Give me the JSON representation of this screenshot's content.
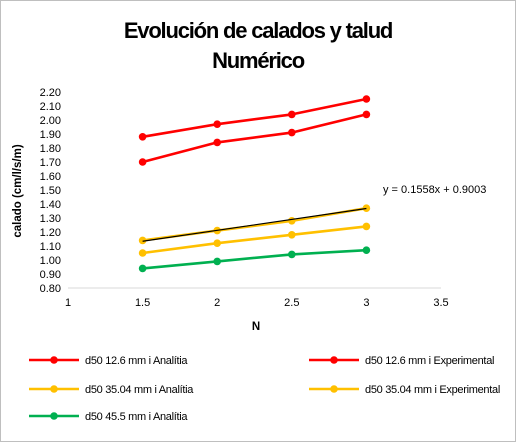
{
  "chart_data": {
    "type": "line",
    "title_lines": [
      "Evolución de calados y talud",
      "Numérico"
    ],
    "xlabel": "N",
    "ylabel": "calado (cm/l/s/m)",
    "xlim": [
      1,
      3.5
    ],
    "ylim": [
      0.8,
      2.2
    ],
    "x_ticks": [
      "1",
      "1.5",
      "2",
      "2.5",
      "3",
      "3.5"
    ],
    "y_ticks": [
      "0.80",
      "0.90",
      "1.00",
      "1.10",
      "1.20",
      "1.30",
      "1.40",
      "1.50",
      "1.60",
      "1.70",
      "1.80",
      "1.90",
      "2.00",
      "2.10",
      "2.20"
    ],
    "x": [
      1.5,
      2,
      2.5,
      3
    ],
    "grid": false,
    "legend_position": "bottom",
    "series": [
      {
        "name": "d50 12.6 mm i Analítia",
        "color": "#ff0000",
        "values": [
          1.88,
          1.97,
          2.04,
          2.15
        ]
      },
      {
        "name": "d50 12.6 mm i Experimental",
        "color": "#ff0000",
        "values": [
          1.7,
          1.84,
          1.91,
          2.04
        ]
      },
      {
        "name": "d50 35.04 mm i Analítia",
        "color": "#ffc000",
        "values": [
          1.14,
          1.21,
          1.28,
          1.37
        ]
      },
      {
        "name": "d50 35.04 mm i Experimental",
        "color": "#ffc000",
        "values": [
          1.05,
          1.12,
          1.18,
          1.24
        ]
      },
      {
        "name": "d50 45.5 mm i Analítia",
        "color": "#00b050",
        "values": [
          0.94,
          0.99,
          1.04,
          1.07
        ]
      }
    ],
    "trendline": {
      "equation": "y = 0.1558x + 0.9003",
      "slope": 0.1558,
      "intercept": 0.9003,
      "color": "#000000",
      "series": "d50 35.04 mm i Analítia"
    }
  }
}
